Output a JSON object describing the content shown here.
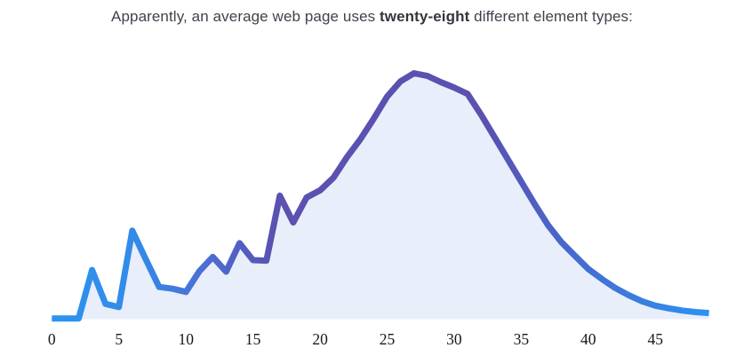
{
  "title": {
    "prefix": "Apparently, an average web page uses ",
    "emphasis": "twenty-eight",
    "suffix": " different element types:"
  },
  "colors": {
    "background": "#FFFFFF",
    "title_text": "#3F434B",
    "tick_text": "#17181A",
    "line_blue": "#2B94F1",
    "line_purple": "#5A51B0",
    "area_fill": "#E9EEFB"
  },
  "chart_data": {
    "type": "area",
    "title": "Apparently, an average web page uses twenty-eight different element types:",
    "xlabel": "",
    "ylabel": "",
    "x": [
      0,
      1,
      2,
      3,
      4,
      5,
      6,
      7,
      8,
      9,
      10,
      11,
      12,
      13,
      14,
      15,
      16,
      17,
      18,
      19,
      20,
      21,
      22,
      23,
      24,
      25,
      26,
      27,
      28,
      29,
      30,
      31,
      32,
      33,
      34,
      35,
      36,
      37,
      38,
      39,
      40,
      41,
      42,
      43,
      44,
      45,
      46,
      47,
      48,
      49
    ],
    "values": [
      0.3,
      0.3,
      0.3,
      20.0,
      6.2,
      4.9,
      36.0,
      24.4,
      13.1,
      12.4,
      11.1,
      19.5,
      25.3,
      19.3,
      30.9,
      24.0,
      23.8,
      50.2,
      39.3,
      49.5,
      52.4,
      57.5,
      65.8,
      73.1,
      81.5,
      90.5,
      96.7,
      100.0,
      98.9,
      96.4,
      94.2,
      91.6,
      83.2,
      74.1,
      65.0,
      55.9,
      46.8,
      38.2,
      31.3,
      25.8,
      20.4,
      16.4,
      12.7,
      9.8,
      7.3,
      5.5,
      4.4,
      3.5,
      2.9,
      2.5
    ],
    "x_ticks": [
      0,
      5,
      10,
      15,
      20,
      25,
      30,
      35,
      40,
      45
    ],
    "xlim": [
      0,
      49
    ],
    "ylim": [
      0,
      100
    ],
    "y_units": "relative frequency (% of peak; y-axis unlabeled in chart)",
    "peak_x": 27,
    "grid": false,
    "legend": false,
    "line_width": 7,
    "area_fill": "#E9EEFB",
    "line_gradient": [
      {
        "offset": 0.0,
        "color": "#2B94F1"
      },
      {
        "offset": 0.13,
        "color": "#338AE8"
      },
      {
        "offset": 0.24,
        "color": "#4C6CD3"
      },
      {
        "offset": 0.34,
        "color": "#5A51B0"
      },
      {
        "offset": 0.66,
        "color": "#5A51B0"
      },
      {
        "offset": 0.79,
        "color": "#4769CF"
      },
      {
        "offset": 0.91,
        "color": "#3781E2"
      },
      {
        "offset": 1.0,
        "color": "#2B94F1"
      }
    ]
  }
}
